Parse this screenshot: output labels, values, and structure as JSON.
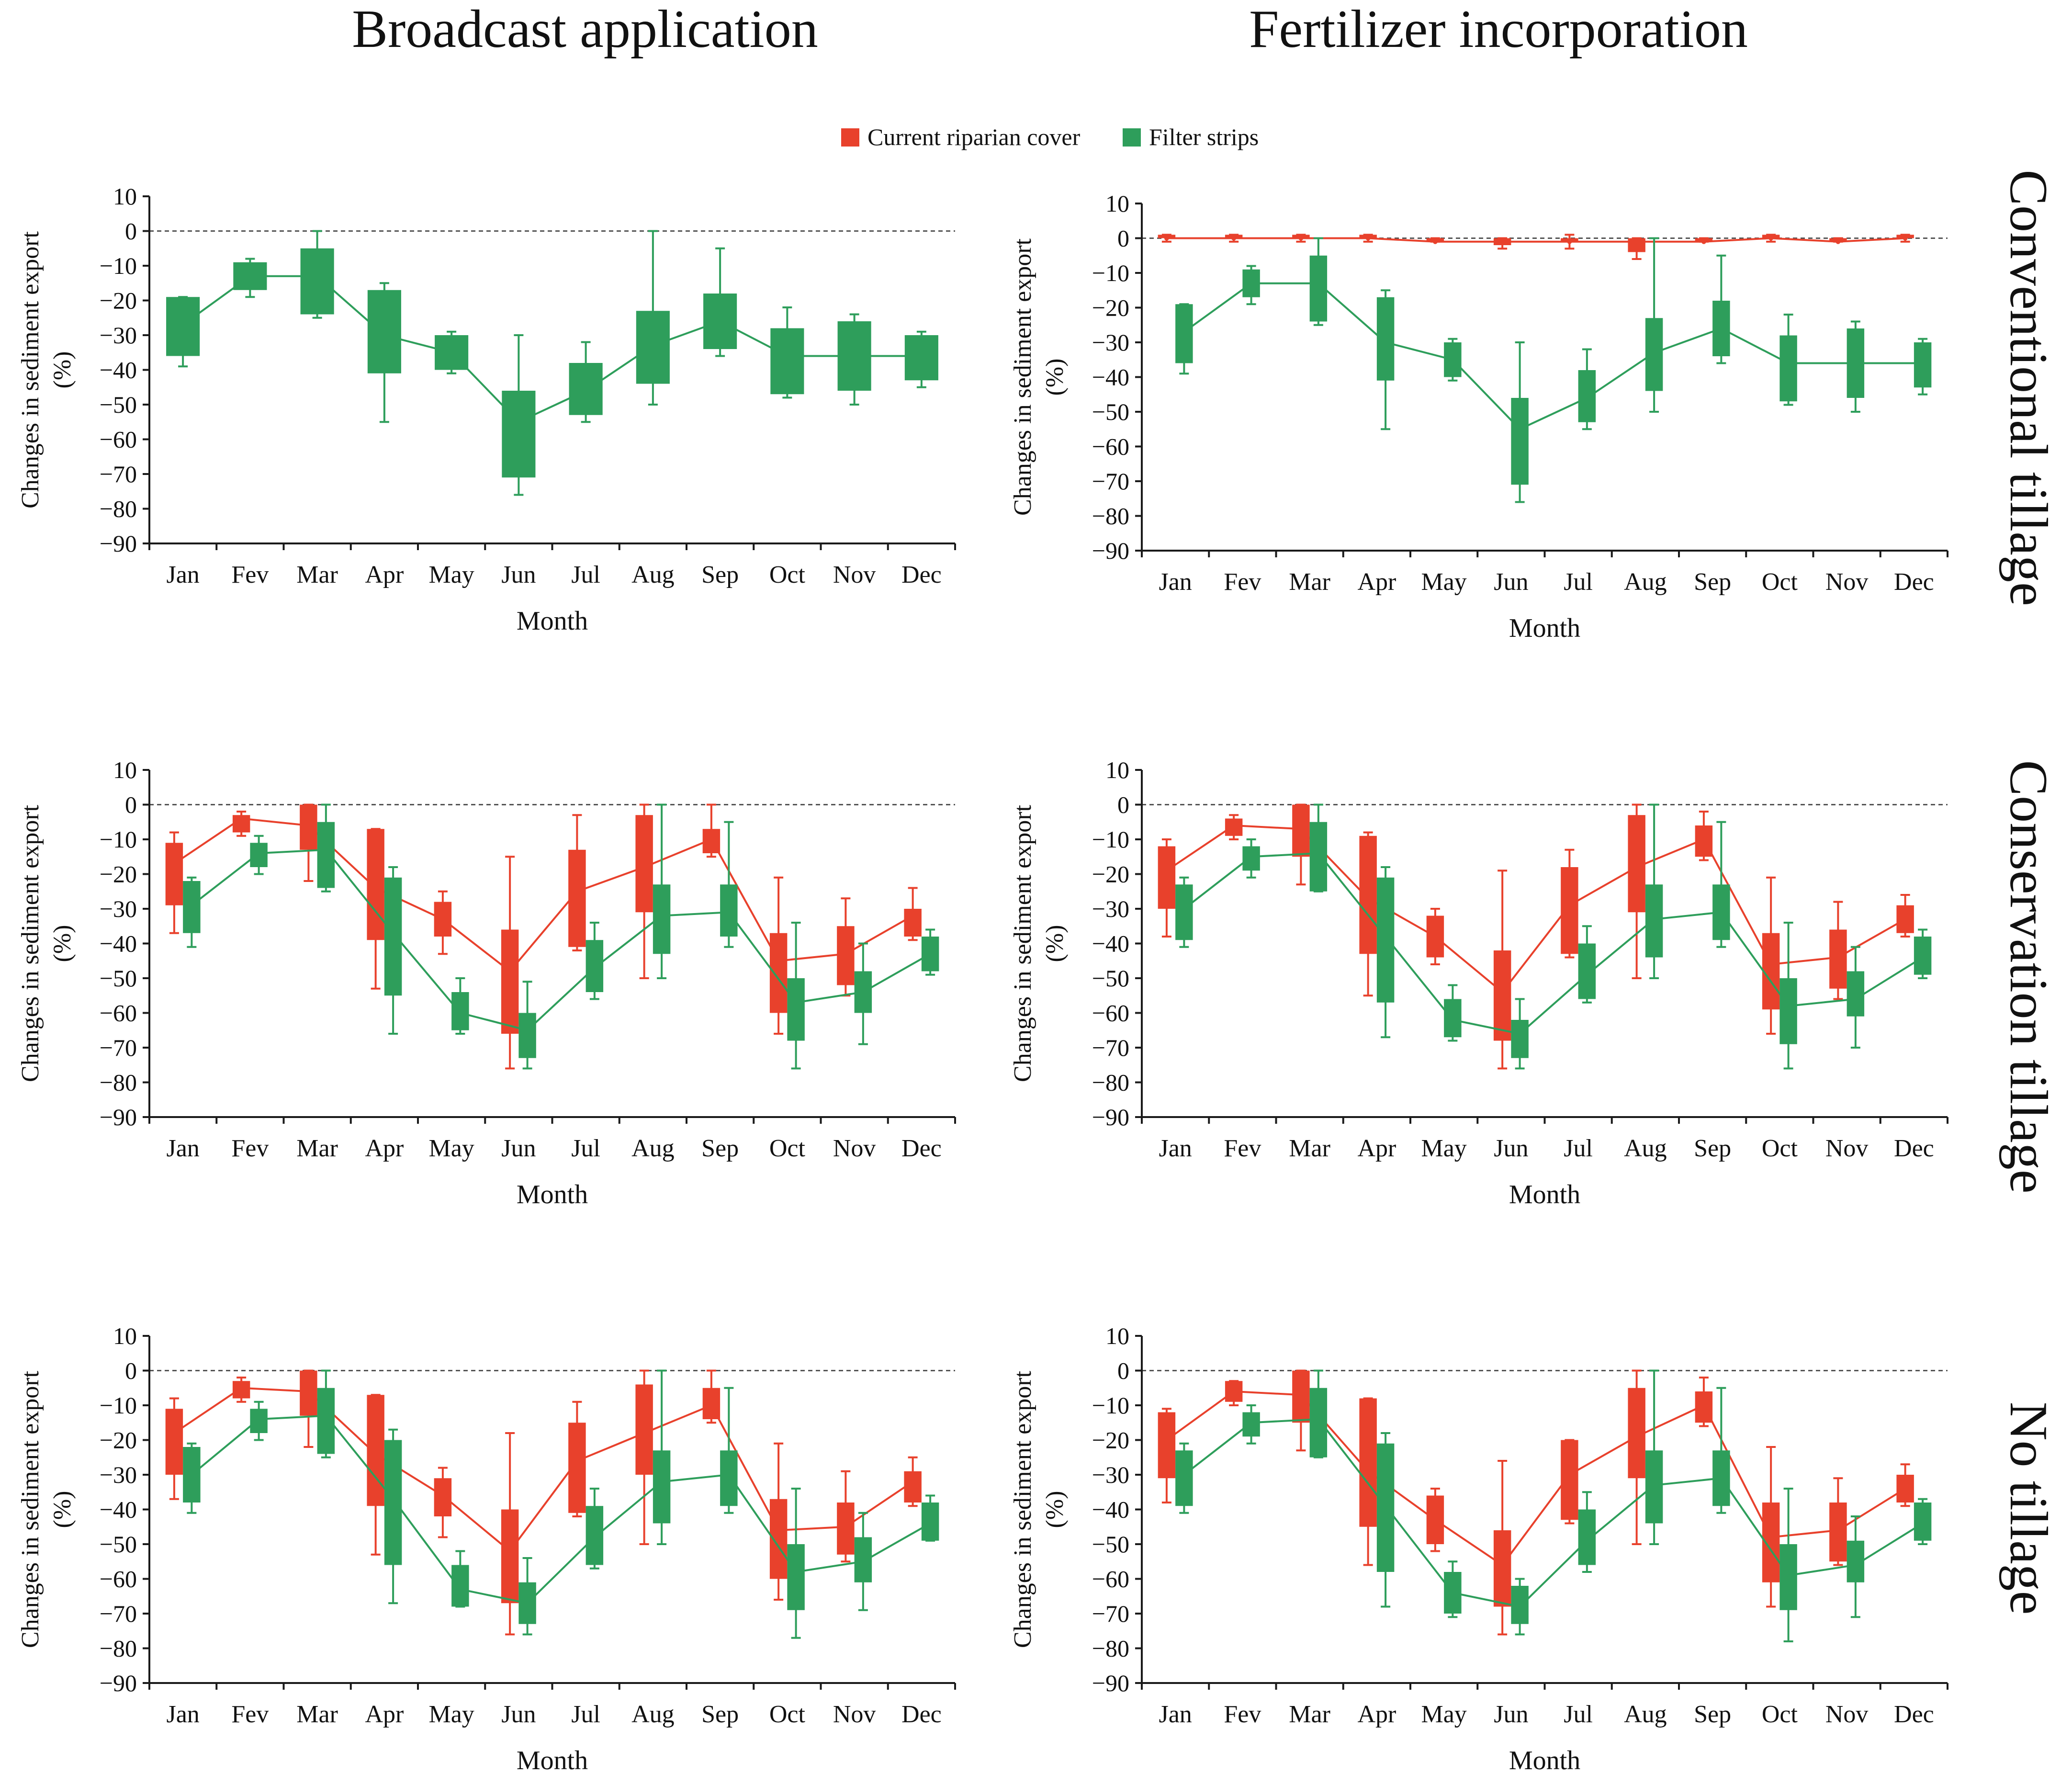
{
  "column_titles": [
    "Broadcast application",
    "Fertilizer incorporation"
  ],
  "row_titles": [
    "Conventional tillage",
    "Conservation tillage",
    "No tillage"
  ],
  "legend": {
    "items": [
      {
        "label": "Current riparian cover",
        "color": "#e8412c"
      },
      {
        "label": "Filter strips",
        "color": "#2e9e5b"
      }
    ]
  },
  "colors": {
    "red": "#e8412c",
    "green": "#2e9e5b",
    "axis": "#1a1a1a",
    "zero_line": "#555555"
  },
  "chart_data": [
    {
      "type": "box",
      "panel": "Broadcast application / Conventional tillage",
      "xlabel": "Month",
      "ylabel": "Changes in sediment export (%)",
      "ylim": [
        -90,
        10
      ],
      "yticks": [
        10,
        0,
        -10,
        -20,
        -30,
        -40,
        -50,
        -60,
        -70,
        -80,
        -90
      ],
      "categories": [
        "Jan",
        "Fev",
        "Mar",
        "Apr",
        "May",
        "Jun",
        "Jul",
        "Aug",
        "Sep",
        "Oct",
        "Nov",
        "Dec"
      ],
      "series": [
        {
          "name": "Filter strips",
          "color": "#2e9e5b",
          "q1": [
            -36,
            -17,
            -24,
            -41,
            -40,
            -71,
            -53,
            -44,
            -34,
            -47,
            -46,
            -43
          ],
          "q3": [
            -19,
            -9,
            -5,
            -17,
            -30,
            -46,
            -38,
            -23,
            -18,
            -28,
            -26,
            -30
          ],
          "min": [
            -39,
            -19,
            -25,
            -55,
            -41,
            -76,
            -55,
            -50,
            -36,
            -48,
            -50,
            -45
          ],
          "max": [
            -19,
            -8,
            0,
            -15,
            -29,
            -30,
            -32,
            0,
            -5,
            -22,
            -24,
            -29
          ],
          "mean": [
            -27,
            -13,
            -13,
            -30,
            -35,
            -55,
            -46,
            -33,
            -26,
            -36,
            -36,
            -36
          ]
        }
      ]
    },
    {
      "type": "box",
      "panel": "Fertilizer incorporation / Conventional tillage",
      "xlabel": "Month",
      "ylabel": "Changes in sediment export (%)",
      "ylim": [
        -90,
        10
      ],
      "yticks": [
        10,
        0,
        -10,
        -20,
        -30,
        -40,
        -50,
        -60,
        -70,
        -80,
        -90
      ],
      "categories": [
        "Jan",
        "Fev",
        "Mar",
        "Apr",
        "May",
        "Jun",
        "Jul",
        "Aug",
        "Sep",
        "Oct",
        "Nov",
        "Dec"
      ],
      "series": [
        {
          "name": "Current riparian cover",
          "color": "#e8412c",
          "q1": [
            0,
            0,
            0,
            0,
            -1,
            -2,
            -1,
            -4,
            -1,
            0,
            -1,
            0
          ],
          "q3": [
            1,
            1,
            1,
            1,
            0,
            0,
            0,
            0,
            0,
            1,
            0,
            1
          ],
          "min": [
            -1,
            -1,
            -1,
            -1,
            -1,
            -3,
            -3,
            -6,
            -1,
            -1,
            -1,
            -1
          ],
          "max": [
            1,
            1,
            1,
            1,
            0,
            0,
            1,
            0,
            0,
            1,
            0,
            1
          ],
          "mean": [
            0,
            0,
            0,
            0,
            -1,
            -1,
            -1,
            -1,
            -1,
            0,
            -1,
            0
          ]
        },
        {
          "name": "Filter strips",
          "color": "#2e9e5b",
          "q1": [
            -36,
            -17,
            -24,
            -41,
            -40,
            -71,
            -53,
            -44,
            -34,
            -47,
            -46,
            -43
          ],
          "q3": [
            -19,
            -9,
            -5,
            -17,
            -30,
            -46,
            -38,
            -23,
            -18,
            -28,
            -26,
            -30
          ],
          "min": [
            -39,
            -19,
            -25,
            -55,
            -41,
            -76,
            -55,
            -50,
            -36,
            -48,
            -50,
            -45
          ],
          "max": [
            -19,
            -8,
            0,
            -15,
            -29,
            -30,
            -32,
            0,
            -5,
            -22,
            -24,
            -29
          ],
          "mean": [
            -27,
            -13,
            -13,
            -30,
            -35,
            -55,
            -46,
            -33,
            -26,
            -36,
            -36,
            -36
          ]
        }
      ]
    },
    {
      "type": "box",
      "panel": "Broadcast application / Conservation tillage",
      "xlabel": "Month",
      "ylabel": "Changes in sediment export (%)",
      "ylim": [
        -90,
        10
      ],
      "yticks": [
        10,
        0,
        -10,
        -20,
        -30,
        -40,
        -50,
        -60,
        -70,
        -80,
        -90
      ],
      "categories": [
        "Jan",
        "Fev",
        "Mar",
        "Apr",
        "May",
        "Jun",
        "Jul",
        "Aug",
        "Sep",
        "Oct",
        "Nov",
        "Dec"
      ],
      "series": [
        {
          "name": "Current riparian cover",
          "color": "#e8412c",
          "q1": [
            -29,
            -8,
            -13,
            -39,
            -38,
            -66,
            -41,
            -31,
            -14,
            -60,
            -52,
            -38
          ],
          "q3": [
            -11,
            -3,
            0,
            -7,
            -28,
            -36,
            -13,
            -3,
            -7,
            -37,
            -35,
            -30
          ],
          "min": [
            -37,
            -9,
            -22,
            -53,
            -43,
            -76,
            -42,
            -50,
            -15,
            -66,
            -55,
            -39
          ],
          "max": [
            -8,
            -2,
            0,
            -7,
            -25,
            -15,
            -3,
            0,
            0,
            -21,
            -27,
            -24
          ],
          "mean": [
            -17,
            -4,
            -6,
            -24,
            -33,
            -48,
            -25,
            -18,
            -10,
            -45,
            -43,
            -32
          ]
        },
        {
          "name": "Filter strips",
          "color": "#2e9e5b",
          "q1": [
            -37,
            -18,
            -24,
            -55,
            -65,
            -73,
            -54,
            -43,
            -38,
            -68,
            -60,
            -48
          ],
          "q3": [
            -22,
            -11,
            -5,
            -21,
            -54,
            -60,
            -39,
            -23,
            -23,
            -50,
            -48,
            -38
          ],
          "min": [
            -41,
            -20,
            -25,
            -66,
            -66,
            -76,
            -56,
            -50,
            -41,
            -76,
            -69,
            -49
          ],
          "max": [
            -21,
            -9,
            0,
            -18,
            -50,
            -51,
            -34,
            0,
            -5,
            -34,
            -40,
            -36
          ],
          "mean": [
            -29,
            -14,
            -13,
            -37,
            -60,
            -65,
            -47,
            -32,
            -31,
            -57,
            -54,
            -43
          ]
        }
      ]
    },
    {
      "type": "box",
      "panel": "Fertilizer incorporation / Conservation tillage",
      "xlabel": "Month",
      "ylabel": "Changes in sediment export (%)",
      "ylim": [
        -90,
        10
      ],
      "yticks": [
        10,
        0,
        -10,
        -20,
        -30,
        -40,
        -50,
        -60,
        -70,
        -80,
        -90
      ],
      "categories": [
        "Jan",
        "Fev",
        "Mar",
        "Apr",
        "May",
        "Jun",
        "Jul",
        "Aug",
        "Sep",
        "Oct",
        "Nov",
        "Dec"
      ],
      "series": [
        {
          "name": "Current riparian cover",
          "color": "#e8412c",
          "q1": [
            -30,
            -9,
            -15,
            -43,
            -44,
            -68,
            -43,
            -31,
            -15,
            -59,
            -53,
            -37
          ],
          "q3": [
            -12,
            -4,
            0,
            -9,
            -32,
            -42,
            -18,
            -3,
            -6,
            -37,
            -36,
            -29
          ],
          "min": [
            -38,
            -10,
            -23,
            -55,
            -46,
            -76,
            -44,
            -50,
            -16,
            -66,
            -56,
            -38
          ],
          "max": [
            -10,
            -3,
            0,
            -8,
            -30,
            -19,
            -13,
            0,
            -2,
            -21,
            -28,
            -26
          ],
          "mean": [
            -19,
            -6,
            -7,
            -27,
            -38,
            -54,
            -29,
            -18,
            -10,
            -46,
            -44,
            -33
          ]
        },
        {
          "name": "Filter strips",
          "color": "#2e9e5b",
          "q1": [
            -39,
            -19,
            -25,
            -57,
            -67,
            -73,
            -56,
            -44,
            -39,
            -69,
            -61,
            -49
          ],
          "q3": [
            -23,
            -12,
            -5,
            -21,
            -56,
            -62,
            -40,
            -23,
            -23,
            -50,
            -48,
            -38
          ],
          "min": [
            -41,
            -21,
            -25,
            -67,
            -68,
            -76,
            -57,
            -50,
            -41,
            -76,
            -70,
            -50
          ],
          "max": [
            -21,
            -10,
            0,
            -18,
            -52,
            -56,
            -35,
            0,
            -5,
            -34,
            -41,
            -36
          ],
          "mean": [
            -30,
            -15,
            -14,
            -38,
            -62,
            -66,
            -49,
            -33,
            -31,
            -58,
            -56,
            -44
          ]
        }
      ]
    },
    {
      "type": "box",
      "panel": "Broadcast application / No tillage",
      "xlabel": "Month",
      "ylabel": "Changes in sediment export (%)",
      "ylim": [
        -90,
        10
      ],
      "yticks": [
        10,
        0,
        -10,
        -20,
        -30,
        -40,
        -50,
        -60,
        -70,
        -80,
        -90
      ],
      "categories": [
        "Jan",
        "Fev",
        "Mar",
        "Apr",
        "May",
        "Jun",
        "Jul",
        "Aug",
        "Sep",
        "Oct",
        "Nov",
        "Dec"
      ],
      "series": [
        {
          "name": "Current riparian cover",
          "color": "#e8412c",
          "q1": [
            -30,
            -8,
            -13,
            -39,
            -42,
            -67,
            -41,
            -30,
            -14,
            -60,
            -53,
            -38
          ],
          "q3": [
            -11,
            -3,
            0,
            -7,
            -31,
            -40,
            -15,
            -4,
            -5,
            -37,
            -38,
            -29
          ],
          "min": [
            -37,
            -9,
            -22,
            -53,
            -48,
            -76,
            -42,
            -50,
            -15,
            -66,
            -55,
            -39
          ],
          "max": [
            -8,
            -2,
            0,
            -7,
            -28,
            -18,
            -9,
            0,
            0,
            -21,
            -29,
            -25
          ],
          "mean": [
            -18,
            -5,
            -6,
            -24,
            -36,
            -52,
            -26,
            -18,
            -10,
            -46,
            -45,
            -32
          ]
        },
        {
          "name": "Filter strips",
          "color": "#2e9e5b",
          "q1": [
            -38,
            -18,
            -24,
            -56,
            -68,
            -73,
            -56,
            -44,
            -39,
            -69,
            -61,
            -49
          ],
          "q3": [
            -22,
            -11,
            -5,
            -20,
            -56,
            -61,
            -39,
            -23,
            -23,
            -50,
            -48,
            -38
          ],
          "min": [
            -41,
            -20,
            -25,
            -67,
            -68,
            -76,
            -57,
            -50,
            -41,
            -77,
            -69,
            -49
          ],
          "max": [
            -21,
            -9,
            0,
            -17,
            -52,
            -54,
            -34,
            0,
            -5,
            -34,
            -41,
            -36
          ],
          "mean": [
            -30,
            -14,
            -13,
            -37,
            -63,
            -67,
            -48,
            -32,
            -30,
            -58,
            -55,
            -44
          ]
        }
      ]
    },
    {
      "type": "box",
      "panel": "Fertilizer incorporation / No tillage",
      "xlabel": "Month",
      "ylabel": "Changes in sediment export (%)",
      "ylim": [
        -90,
        10
      ],
      "yticks": [
        10,
        0,
        -10,
        -20,
        -30,
        -40,
        -50,
        -60,
        -70,
        -80,
        -90
      ],
      "categories": [
        "Jan",
        "Fev",
        "Mar",
        "Apr",
        "May",
        "Jun",
        "Jul",
        "Aug",
        "Sep",
        "Oct",
        "Nov",
        "Dec"
      ],
      "series": [
        {
          "name": "Current riparian cover",
          "color": "#e8412c",
          "q1": [
            -31,
            -9,
            -15,
            -45,
            -50,
            -68,
            -43,
            -31,
            -15,
            -61,
            -55,
            -38
          ],
          "q3": [
            -12,
            -3,
            0,
            -8,
            -36,
            -46,
            -20,
            -5,
            -6,
            -38,
            -38,
            -30
          ],
          "min": [
            -38,
            -10,
            -23,
            -56,
            -52,
            -76,
            -44,
            -50,
            -16,
            -68,
            -56,
            -39
          ],
          "max": [
            -11,
            -3,
            0,
            -8,
            -34,
            -26,
            -20,
            0,
            -2,
            -22,
            -31,
            -27
          ],
          "mean": [
            -20,
            -6,
            -7,
            -29,
            -43,
            -56,
            -30,
            -19,
            -10,
            -48,
            -46,
            -34
          ]
        },
        {
          "name": "Filter strips",
          "color": "#2e9e5b",
          "q1": [
            -39,
            -19,
            -25,
            -58,
            -70,
            -73,
            -56,
            -44,
            -39,
            -69,
            -61,
            -49
          ],
          "q3": [
            -23,
            -12,
            -5,
            -21,
            -58,
            -62,
            -40,
            -23,
            -23,
            -50,
            -49,
            -38
          ],
          "min": [
            -41,
            -21,
            -25,
            -68,
            -71,
            -76,
            -58,
            -50,
            -41,
            -78,
            -71,
            -50
          ],
          "max": [
            -21,
            -10,
            0,
            -18,
            -55,
            -60,
            -35,
            0,
            -5,
            -34,
            -42,
            -37
          ],
          "mean": [
            -30,
            -15,
            -14,
            -39,
            -64,
            -68,
            -49,
            -33,
            -31,
            -59,
            -56,
            -44
          ]
        }
      ]
    }
  ]
}
